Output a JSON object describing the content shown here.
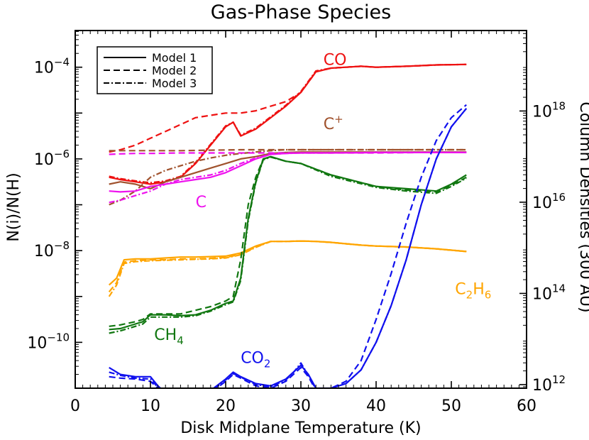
{
  "chart_data": {
    "type": "line",
    "title": "Gas-Phase Species",
    "xlabel": "Disk Midplane Temperature (K)",
    "ylabel": "N(i)/N(H)",
    "ylabel_right": "Column Densities (300 AU)",
    "xlim": [
      0,
      60
    ],
    "ylim_log10": [
      -11.0,
      -3.2
    ],
    "yscale": "log",
    "x_ticks": [
      "0",
      "10",
      "20",
      "30",
      "40",
      "50",
      "60"
    ],
    "x_tick_values": [
      0,
      10,
      20,
      30,
      40,
      50,
      60
    ],
    "y_ticks": [
      {
        "base": "10",
        "exp": "−10",
        "log": -10
      },
      {
        "base": "10",
        "exp": "−8",
        "log": -8
      },
      {
        "base": "10",
        "exp": "−6",
        "log": -6
      },
      {
        "base": "10",
        "exp": "−4",
        "log": -4
      }
    ],
    "y2_ticks": [
      {
        "base": "10",
        "exp": "12",
        "frac": 0.01
      },
      {
        "base": "10",
        "exp": "14",
        "frac": 0.265
      },
      {
        "base": "10",
        "exp": "16",
        "frac": 0.52
      },
      {
        "base": "10",
        "exp": "18",
        "frac": 0.775
      }
    ],
    "grid": false,
    "legend_position": "top-left",
    "legend": [
      {
        "name": "Model 1",
        "dash": "solid"
      },
      {
        "name": "Model 2",
        "dash": "dashed"
      },
      {
        "name": "Model 3",
        "dash": "dashdot"
      }
    ],
    "species_labels": [
      {
        "id": "co",
        "parts": [
          {
            "t": "CO"
          }
        ],
        "color": "#ee1111",
        "x": 33,
        "y": -3.95
      },
      {
        "id": "cplus",
        "parts": [
          {
            "t": "C"
          },
          {
            "t": "+",
            "s": "sup"
          }
        ],
        "color": "#a0522d",
        "x": 33,
        "y": -5.35
      },
      {
        "id": "c",
        "parts": [
          {
            "t": "C"
          }
        ],
        "color": "#ee11ee",
        "x": 16,
        "y": -7.05
      },
      {
        "id": "c2h6",
        "parts": [
          {
            "t": "C"
          },
          {
            "t": "2",
            "s": "sub"
          },
          {
            "t": "H"
          },
          {
            "t": "6",
            "s": "sub"
          }
        ],
        "color": "#ffa500",
        "x": 50.5,
        "y": -8.95
      },
      {
        "id": "ch4",
        "parts": [
          {
            "t": "CH"
          },
          {
            "t": "4",
            "s": "sub"
          }
        ],
        "color": "#117711",
        "x": 10.5,
        "y": -9.95
      },
      {
        "id": "co2",
        "parts": [
          {
            "t": "CO"
          },
          {
            "t": "2",
            "s": "sub"
          }
        ],
        "color": "#1111ee",
        "x": 22,
        "y": -10.45
      }
    ],
    "series": [
      {
        "species": "CO",
        "model": "Model 1",
        "color": "#ee1111",
        "dash": "solid",
        "x": [
          4.5,
          6,
          8,
          10,
          12,
          14,
          16,
          18,
          20,
          21,
          22,
          24,
          26,
          28,
          30,
          32,
          34,
          36,
          38,
          40,
          44,
          48,
          52
        ],
        "y": [
          -6.4,
          -6.45,
          -6.5,
          -6.55,
          -6.5,
          -6.4,
          -6.1,
          -5.7,
          -5.3,
          -5.2,
          -5.5,
          -5.35,
          -5.1,
          -4.85,
          -4.55,
          -4.1,
          -4.02,
          -4.0,
          -3.98,
          -4.0,
          -3.98,
          -3.95,
          -3.94
        ]
      },
      {
        "species": "CO",
        "model": "Model 2",
        "color": "#ee1111",
        "dash": "dashed",
        "x": [
          4.5,
          6,
          8,
          10,
          12,
          14,
          16,
          18,
          20,
          22,
          24,
          26,
          28,
          30,
          32,
          34,
          36,
          38,
          40,
          44,
          48,
          52
        ],
        "y": [
          -5.85,
          -5.8,
          -5.7,
          -5.55,
          -5.4,
          -5.25,
          -5.1,
          -5.05,
          -5.0,
          -5.0,
          -4.95,
          -4.85,
          -4.75,
          -4.55,
          -4.1,
          -4.02,
          -4.0,
          -3.98,
          -4.0,
          -3.98,
          -3.95,
          -3.94
        ]
      },
      {
        "species": "CO",
        "model": "Model 3",
        "color": "#ee1111",
        "dash": "dashdot",
        "x": [
          4.5,
          6,
          8,
          10,
          12,
          14,
          16,
          18,
          20,
          21,
          22,
          24,
          26,
          28,
          30,
          32,
          34,
          36,
          38,
          40,
          44,
          48,
          52
        ],
        "y": [
          -6.38,
          -6.43,
          -6.48,
          -6.52,
          -6.48,
          -6.38,
          -6.08,
          -5.68,
          -5.28,
          -5.2,
          -5.48,
          -5.33,
          -5.08,
          -4.83,
          -4.53,
          -4.08,
          -4.02,
          -4.0,
          -3.98,
          -4.0,
          -3.98,
          -3.95,
          -3.94
        ]
      },
      {
        "species": "C+",
        "model": "Model 1",
        "color": "#a0522d",
        "dash": "solid",
        "x": [
          4.5,
          6,
          8,
          10,
          12,
          14,
          16,
          18,
          20,
          22,
          24,
          26,
          28,
          30,
          34,
          40,
          46,
          52
        ],
        "y": [
          -6.55,
          -6.5,
          -6.55,
          -6.65,
          -6.5,
          -6.4,
          -6.3,
          -6.2,
          -6.1,
          -6.0,
          -5.95,
          -5.88,
          -5.86,
          -5.85,
          -5.85,
          -5.85,
          -5.85,
          -5.85
        ]
      },
      {
        "species": "C+",
        "model": "Model 2",
        "color": "#a0522d",
        "dash": "dashed",
        "x": [
          4.5,
          6,
          8,
          10,
          14,
          18,
          22,
          26,
          30,
          34,
          40,
          46,
          52
        ],
        "y": [
          -5.82,
          -5.82,
          -5.82,
          -5.82,
          -5.82,
          -5.81,
          -5.8,
          -5.8,
          -5.8,
          -5.8,
          -5.8,
          -5.8,
          -5.8
        ]
      },
      {
        "species": "C+",
        "model": "Model 3",
        "color": "#a0522d",
        "dash": "dashdot",
        "x": [
          4.5,
          6,
          8,
          10,
          12,
          14,
          16,
          18,
          20,
          22,
          24,
          26,
          28,
          30,
          34,
          40,
          46,
          52
        ],
        "y": [
          -7.0,
          -6.9,
          -6.7,
          -6.4,
          -6.25,
          -6.15,
          -6.05,
          -5.98,
          -5.92,
          -5.88,
          -5.85,
          -5.82,
          -5.8,
          -5.8,
          -5.8,
          -5.8,
          -5.8,
          -5.8
        ]
      },
      {
        "species": "C",
        "model": "Model 1",
        "color": "#ee11ee",
        "dash": "solid",
        "x": [
          4.5,
          6,
          8,
          10,
          12,
          14,
          16,
          18,
          20,
          22,
          24,
          26,
          28,
          30,
          34,
          40,
          46,
          52
        ],
        "y": [
          -6.7,
          -6.72,
          -6.7,
          -6.6,
          -6.55,
          -6.5,
          -6.45,
          -6.4,
          -6.3,
          -6.15,
          -6.0,
          -5.9,
          -5.88,
          -5.87,
          -5.87,
          -5.86,
          -5.86,
          -5.86
        ]
      },
      {
        "species": "C",
        "model": "Model 2",
        "color": "#ee11ee",
        "dash": "dashed",
        "x": [
          4.5,
          6,
          8,
          10,
          14,
          18,
          22,
          26,
          30,
          34,
          40,
          46,
          52
        ],
        "y": [
          -5.9,
          -5.89,
          -5.88,
          -5.88,
          -5.87,
          -5.87,
          -5.87,
          -5.87,
          -5.87,
          -5.87,
          -5.87,
          -5.86,
          -5.86
        ]
      },
      {
        "species": "C",
        "model": "Model 3",
        "color": "#ee11ee",
        "dash": "dashdot",
        "x": [
          4.5,
          6,
          8,
          10,
          12,
          14,
          16,
          18,
          20,
          22,
          24,
          26,
          28,
          30,
          34,
          40,
          46,
          52
        ],
        "y": [
          -6.95,
          -6.9,
          -6.8,
          -6.7,
          -6.55,
          -6.45,
          -6.4,
          -6.35,
          -6.25,
          -6.1,
          -5.98,
          -5.9,
          -5.88,
          -5.87,
          -5.87,
          -5.86,
          -5.86,
          -5.86
        ]
      },
      {
        "species": "C2H6",
        "model": "Model 1",
        "color": "#ffa500",
        "dash": "solid",
        "x": [
          4.5,
          5.5,
          6.5,
          8,
          10,
          12,
          14,
          16,
          18,
          20,
          22,
          24,
          26,
          28,
          30,
          32,
          34,
          36,
          38,
          40,
          44,
          48,
          52
        ],
        "y": [
          -8.75,
          -8.6,
          -8.2,
          -8.18,
          -8.18,
          -8.16,
          -8.14,
          -8.14,
          -8.13,
          -8.12,
          -8.05,
          -7.9,
          -7.8,
          -7.8,
          -7.79,
          -7.8,
          -7.82,
          -7.85,
          -7.88,
          -7.9,
          -7.92,
          -7.96,
          -8.02
        ]
      },
      {
        "species": "C2H6",
        "model": "Model 2",
        "color": "#ffa500",
        "dash": "dashed",
        "x": [
          4.5,
          5.5,
          6.5,
          8,
          10,
          12,
          14,
          16,
          18,
          20,
          22,
          24,
          26,
          28,
          30,
          32,
          34,
          36,
          38,
          40,
          44,
          48,
          52
        ],
        "y": [
          -8.9,
          -8.7,
          -8.25,
          -8.22,
          -8.2,
          -8.2,
          -8.18,
          -8.18,
          -8.17,
          -8.15,
          -8.08,
          -7.92,
          -7.8,
          -7.8,
          -7.79,
          -7.8,
          -7.82,
          -7.85,
          -7.88,
          -7.9,
          -7.92,
          -7.96,
          -8.02
        ]
      },
      {
        "species": "C2H6",
        "model": "Model 3",
        "color": "#ffa500",
        "dash": "dashdot",
        "x": [
          4.5,
          5.5,
          6.5,
          8,
          10,
          12,
          14,
          16,
          18,
          20,
          22,
          24,
          26,
          28,
          30,
          32,
          34,
          36,
          38,
          40,
          44,
          48,
          52
        ],
        "y": [
          -9.0,
          -8.75,
          -8.28,
          -8.24,
          -8.22,
          -8.21,
          -8.2,
          -8.19,
          -8.18,
          -8.16,
          -8.09,
          -7.93,
          -7.8,
          -7.8,
          -7.79,
          -7.8,
          -7.82,
          -7.85,
          -7.88,
          -7.9,
          -7.92,
          -7.96,
          -8.02
        ]
      },
      {
        "species": "CH4",
        "model": "Model 1",
        "color": "#117711",
        "dash": "solid",
        "x": [
          4.5,
          6,
          8,
          9,
          10,
          12,
          14,
          16,
          18,
          20,
          21,
          22,
          23,
          24,
          25,
          26,
          28,
          30,
          34,
          40,
          44,
          48,
          50,
          52
        ],
        "y": [
          -9.72,
          -9.7,
          -9.6,
          -9.55,
          -9.4,
          -9.4,
          -9.42,
          -9.4,
          -9.3,
          -9.15,
          -9.1,
          -8.6,
          -7.3,
          -6.5,
          -6.0,
          -5.95,
          -6.05,
          -6.1,
          -6.35,
          -6.6,
          -6.65,
          -6.7,
          -6.55,
          -6.35
        ]
      },
      {
        "species": "CH4",
        "model": "Model 2",
        "color": "#117711",
        "dash": "dashed",
        "x": [
          4.5,
          6,
          8,
          9,
          10,
          12,
          14,
          16,
          18,
          20,
          21,
          22,
          23,
          24,
          25,
          26,
          28,
          30,
          34,
          40,
          44,
          48,
          50,
          52
        ],
        "y": [
          -9.65,
          -9.62,
          -9.55,
          -9.5,
          -9.38,
          -9.38,
          -9.38,
          -9.3,
          -9.22,
          -9.1,
          -9.0,
          -8.2,
          -7.0,
          -6.4,
          -6.0,
          -5.96,
          -6.05,
          -6.1,
          -6.35,
          -6.6,
          -6.68,
          -6.72,
          -6.58,
          -6.4
        ]
      },
      {
        "species": "CH4",
        "model": "Model 3",
        "color": "#117711",
        "dash": "dashdot",
        "x": [
          4.5,
          6,
          8,
          9,
          10,
          12,
          14,
          16,
          18,
          20,
          21,
          22,
          23,
          24,
          25,
          26,
          28,
          30,
          34,
          40,
          44,
          48,
          50,
          52
        ],
        "y": [
          -9.8,
          -9.75,
          -9.65,
          -9.6,
          -9.45,
          -9.45,
          -9.45,
          -9.42,
          -9.32,
          -9.18,
          -9.12,
          -8.65,
          -7.35,
          -6.52,
          -6.02,
          -5.96,
          -6.05,
          -6.1,
          -6.38,
          -6.62,
          -6.7,
          -6.75,
          -6.6,
          -6.42
        ]
      },
      {
        "species": "CO2",
        "model": "Model 1",
        "color": "#1111ee",
        "dash": "solid",
        "x": [
          4.5,
          6,
          8,
          10,
          11,
          12,
          14,
          16,
          18,
          20,
          21,
          22,
          24,
          26,
          28,
          29,
          30,
          31,
          32,
          34,
          36,
          38,
          40,
          42,
          44,
          46,
          48,
          50,
          52
        ],
        "y": [
          -10.55,
          -10.7,
          -10.75,
          -10.75,
          -10.95,
          -11.1,
          -11.1,
          -11.1,
          -11.05,
          -10.8,
          -10.65,
          -10.75,
          -10.9,
          -10.95,
          -10.8,
          -10.65,
          -10.5,
          -10.7,
          -11.0,
          -11.0,
          -10.9,
          -10.6,
          -10.0,
          -9.2,
          -8.2,
          -7.0,
          -6.0,
          -5.3,
          -4.9
        ]
      },
      {
        "species": "CO2",
        "model": "Model 2",
        "color": "#1111ee",
        "dash": "dashed",
        "x": [
          4.5,
          6,
          8,
          10,
          11,
          12,
          14,
          16,
          18,
          20,
          21,
          22,
          24,
          26,
          28,
          29,
          30,
          31,
          32,
          34,
          36,
          38,
          40,
          42,
          44,
          46,
          48,
          50,
          52
        ],
        "y": [
          -10.75,
          -10.78,
          -10.8,
          -10.85,
          -11.0,
          -11.15,
          -11.15,
          -11.15,
          -11.1,
          -10.85,
          -10.7,
          -10.78,
          -10.95,
          -11.0,
          -10.85,
          -10.7,
          -10.55,
          -10.75,
          -11.05,
          -11.0,
          -10.85,
          -10.4,
          -9.5,
          -8.5,
          -7.4,
          -6.4,
          -5.6,
          -5.1,
          -4.82
        ]
      },
      {
        "species": "CO2",
        "model": "Model 3",
        "color": "#1111ee",
        "dash": "dashdot",
        "x": [
          4.5,
          6,
          8,
          10,
          11,
          12,
          14,
          16,
          18,
          20,
          21,
          22,
          24,
          26,
          28,
          29,
          30,
          31,
          32,
          34,
          36,
          38,
          40,
          42,
          44,
          46,
          48,
          50,
          52
        ],
        "y": [
          -10.65,
          -10.72,
          -10.78,
          -10.8,
          -10.98,
          -11.12,
          -11.12,
          -11.12,
          -11.08,
          -10.82,
          -10.68,
          -10.76,
          -10.92,
          -10.97,
          -10.82,
          -10.66,
          -10.45,
          -10.72,
          -11.02,
          -11.0,
          -10.9,
          -10.6,
          -10.0,
          -9.2,
          -8.2,
          -7.0,
          -6.0,
          -5.3,
          -4.9
        ]
      }
    ]
  }
}
